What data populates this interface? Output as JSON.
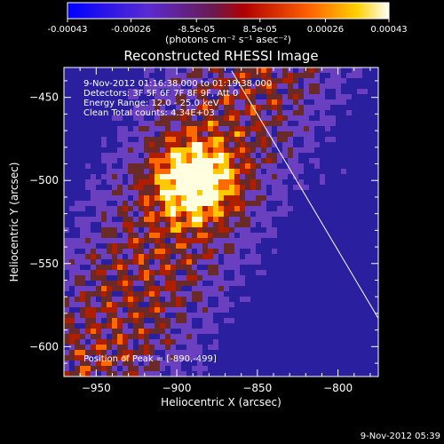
{
  "chart_data": {
    "type": "heatmap",
    "title": "Reconstructed RHESSI Image",
    "xlabel": "Heliocentric X (arcsec)",
    "ylabel": "Heliocentric Y (arcsec)",
    "xlim": [
      -970,
      -775
    ],
    "ylim": [
      -618,
      -432
    ],
    "xticks": [
      -950,
      -900,
      -850,
      -800
    ],
    "yticks": [
      -450,
      -500,
      -550,
      -600
    ],
    "colorbar": {
      "ticks": [
        {
          "value": -0.00043,
          "label": "-0.00043"
        },
        {
          "value": -0.00026,
          "label": "-0.00026"
        },
        {
          "value": -8.5e-05,
          "label": "-8.5e-05"
        },
        {
          "value": 8.5e-05,
          "label": "8.5e-05"
        },
        {
          "value": 0.00026,
          "label": "0.00026"
        },
        {
          "value": 0.00043,
          "label": "0.00043"
        }
      ],
      "range": [
        -0.00043,
        0.00043
      ],
      "units": "(photons cm⁻² s⁻¹ asec⁻²)"
    },
    "info_lines": [
      "9-Nov-2012 01:16:38.000 to 01:19:38.000",
      "Detectors: 3F 5F 6F 7F 8F 9F, Att 0",
      "Energy Range: 12.0 - 25.0 keV",
      "Clean    Total counts: 4.34E+03"
    ],
    "peak": {
      "x": -890,
      "y": -499,
      "label": "Position of Peak = [-890,-499]"
    },
    "limb_line": {
      "x": [
        -866,
        -775
      ],
      "y": [
        -434,
        -583
      ]
    },
    "colormap": [
      "#0000c0",
      "#2a1f9f",
      "#6a3fc0",
      "#6b2a2a",
      "#b01e00",
      "#ff6a00",
      "#ffc800",
      "#ffffe0"
    ]
  },
  "timestamp": "9-Nov-2012 05:39"
}
